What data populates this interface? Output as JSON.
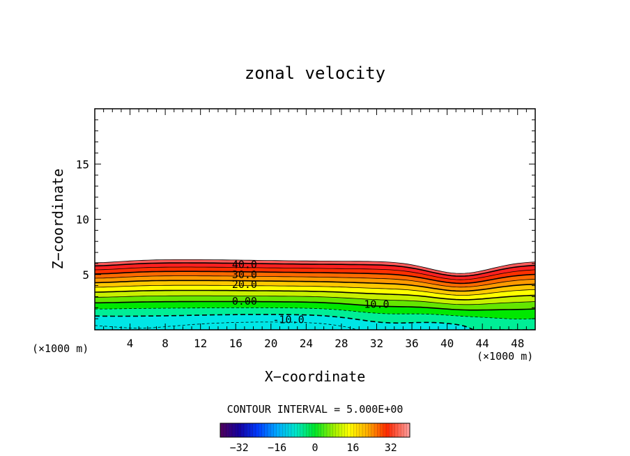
{
  "chart_data": {
    "type": "contour",
    "title": "zonal velocity",
    "xlabel": "X−coordinate",
    "ylabel": "Z−coordinate",
    "x_unit_left": "(×1000 m)",
    "x_unit_right": "(×1000 m)",
    "xlim": [
      0,
      50
    ],
    "ylim": [
      0,
      20
    ],
    "xticks": [
      4,
      8,
      12,
      16,
      20,
      24,
      28,
      32,
      36,
      40,
      44,
      48
    ],
    "xtick_labels": [
      "4",
      "8",
      "12",
      "16",
      "20",
      "24",
      "28",
      "32",
      "36",
      "40",
      "44",
      "48"
    ],
    "yticks": [
      5,
      10,
      15
    ],
    "ytick_labels": [
      "5",
      "10",
      "15"
    ],
    "contour_interval_text": "CONTOUR INTERVAL = 5.000E+00",
    "contour_interval": 5,
    "contour_labels": [
      {
        "text": "40.0",
        "x": 17.0,
        "z": 5.9
      },
      {
        "text": "30.0",
        "x": 17.0,
        "z": 5.0
      },
      {
        "text": "20.0",
        "x": 17.0,
        "z": 4.1
      },
      {
        "text": "0.00",
        "x": 17.0,
        "z": 2.6
      },
      {
        "text": "10.0",
        "x": 32.0,
        "z": 2.3
      },
      {
        "text": "-10.0",
        "x": 22.0,
        "z": 0.9
      }
    ],
    "field_levels": [
      {
        "value": 45,
        "color": "#ff8a8a"
      },
      {
        "value": 40,
        "color": "#ff5a5a"
      },
      {
        "value": 35,
        "color": "#ff2020"
      },
      {
        "value": 30,
        "color": "#ff3000"
      },
      {
        "value": 25,
        "color": "#ff6a00"
      },
      {
        "value": 20,
        "color": "#ff9a00"
      },
      {
        "value": 15,
        "color": "#ffc800"
      },
      {
        "value": 10,
        "color": "#ffff00"
      },
      {
        "value": 5,
        "color": "#c8f000"
      },
      {
        "value": 0,
        "color": "#64e600"
      },
      {
        "value": -5,
        "color": "#00e800"
      },
      {
        "value": -10,
        "color": "#00ee96"
      },
      {
        "value": -15,
        "color": "#00e6e6"
      }
    ],
    "colorbar": {
      "range": [
        -40,
        40
      ],
      "ticks": [
        -32,
        -16,
        0,
        16,
        32
      ],
      "tick_labels": [
        "−32",
        "−16",
        "0",
        "16",
        "32"
      ]
    }
  }
}
